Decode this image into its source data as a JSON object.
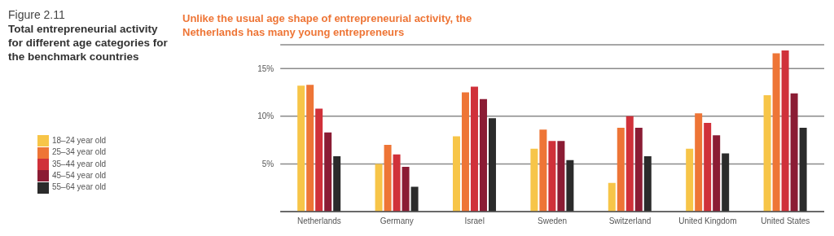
{
  "chart_data": {
    "type": "bar",
    "title": "Total entrepreneurial activity for different age categories for the benchmark countries",
    "subtitle": "Unlike the usual age shape of entrepreneurial activity, the Netherlands has many young entrepreneurs",
    "annotations": [
      "Figure 2.11"
    ],
    "categories": [
      "Netherlands",
      "Germany",
      "Israel",
      "Sweden",
      "Switzerland",
      "United Kingdom",
      "United States"
    ],
    "series": [
      {
        "name": "18–24 year old",
        "color": "#f7c548",
        "values": [
          13.2,
          5.0,
          7.9,
          6.6,
          3.0,
          6.6,
          12.2
        ]
      },
      {
        "name": "25–34 year old",
        "color": "#ee7536",
        "values": [
          13.3,
          7.0,
          12.5,
          8.6,
          8.8,
          10.3,
          16.6
        ]
      },
      {
        "name": "35–44 year old",
        "color": "#d0313a",
        "values": [
          10.8,
          6.0,
          13.1,
          7.4,
          10.0,
          9.3,
          16.9
        ]
      },
      {
        "name": "45–54 year old",
        "color": "#8b1c34",
        "values": [
          8.3,
          4.7,
          11.8,
          7.4,
          8.8,
          8.0,
          12.4
        ]
      },
      {
        "name": "55–64 year old",
        "color": "#2b2b2b",
        "values": [
          5.8,
          2.6,
          9.8,
          5.4,
          5.8,
          6.1,
          8.8
        ]
      }
    ],
    "ylim": [
      0,
      17.5
    ],
    "yticks": [
      {
        "value": 5,
        "label": "5%"
      },
      {
        "value": 10,
        "label": "10%"
      },
      {
        "value": 15,
        "label": "15%"
      }
    ],
    "grid": "y",
    "legend": "left"
  }
}
